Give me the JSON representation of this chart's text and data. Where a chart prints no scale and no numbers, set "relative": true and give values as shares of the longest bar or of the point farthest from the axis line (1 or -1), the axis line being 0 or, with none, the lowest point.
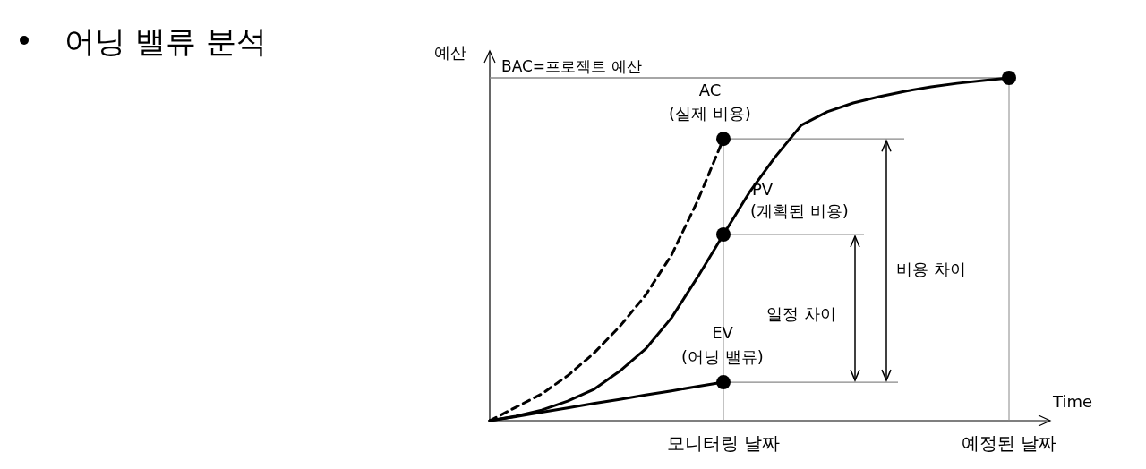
{
  "chart_data": {
    "type": "line",
    "title": "어닝 밸류 분석",
    "relative": true,
    "xlabel": "Time",
    "ylabel": "예산",
    "categories": [
      null,
      null,
      null,
      null,
      null,
      null,
      null,
      null,
      null,
      "모니터링 날짜",
      null,
      null,
      null,
      null,
      null,
      null,
      null,
      null,
      null,
      null,
      "예정된 날짜"
    ],
    "series": [
      {
        "name": "PV (계획된 비용)",
        "color": "#000000",
        "line_style": "solid",
        "values": [
          0,
          0.013,
          0.031,
          0.057,
          0.091,
          0.144,
          0.209,
          0.3,
          0.418,
          0.543,
          0.666,
          0.77,
          0.862,
          0.901,
          0.927,
          0.945,
          0.961,
          0.974,
          0.984,
          0.992,
          1.0
        ]
      },
      {
        "name": "AC (실제 비용)",
        "color": "#000000",
        "line_style": "dashed",
        "values": [
          0,
          0.039,
          0.078,
          0.131,
          0.196,
          0.274,
          0.366,
          0.483,
          0.64,
          0.822,
          null,
          null,
          null,
          null,
          null,
          null,
          null,
          null,
          null,
          null,
          null
        ]
      },
      {
        "name": "EV (어닝 밸류)",
        "color": "#000000",
        "line_style": "solid",
        "values": [
          0,
          0.012,
          0.025,
          0.037,
          0.05,
          0.062,
          0.075,
          0.087,
          0.1,
          0.112,
          null,
          null,
          null,
          null,
          null,
          null,
          null,
          null,
          null,
          null,
          null
        ]
      },
      {
        "type": "scatter",
        "marker": "circle",
        "color": "#000000",
        "x": [
          "모니터링 날짜",
          "모니터링 날짜",
          "모니터링 날짜",
          "예정된 날짜"
        ],
        "values": [
          0.822,
          0.543,
          0.112,
          1.0
        ]
      }
    ],
    "ref_lines": [
      {
        "axis": "y",
        "value": 1.0,
        "label": "BAC=프로젝트 예산",
        "color": "#888888"
      },
      {
        "axis": "y",
        "value": 0.822,
        "color": "#888888"
      },
      {
        "axis": "y",
        "value": 0.543,
        "color": "#888888"
      },
      {
        "axis": "y",
        "value": 0.112,
        "color": "#888888"
      },
      {
        "axis": "x",
        "value": "모니터링 날짜",
        "color": "#888888"
      },
      {
        "axis": "x",
        "value": "예정된 날짜",
        "color": "#888888"
      }
    ],
    "annotations": [
      "일정 차이",
      "비용 차이"
    ]
  }
}
